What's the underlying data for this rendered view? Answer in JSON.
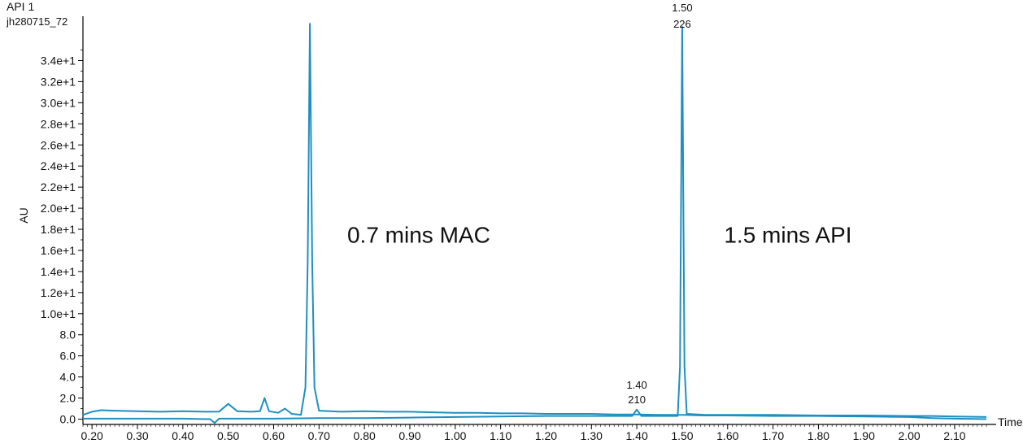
{
  "chart_data": {
    "type": "line",
    "title": "API 1",
    "subtitle": "jh280715_72",
    "ylabel": "AU",
    "xlabel": "Time",
    "xlim": [
      0.18,
      2.17
    ],
    "ylim": [
      -0.5,
      38.2
    ],
    "x_ticks": [
      0.2,
      0.3,
      0.4,
      0.5,
      0.6,
      0.7,
      0.8,
      0.9,
      1.0,
      1.1,
      1.2,
      1.3,
      1.4,
      1.5,
      1.6,
      1.7,
      1.8,
      1.9,
      2.0,
      2.1
    ],
    "x_tick_labels": [
      "0.20",
      "0.30",
      "0.40",
      "0.50",
      "0.60",
      "0.70",
      "0.80",
      "0.90",
      "1.00",
      "1.10",
      "1.20",
      "1.30",
      "1.40",
      "1.50",
      "1.60",
      "1.70",
      "1.80",
      "1.90",
      "2.00",
      "2.10"
    ],
    "y_ticks": [
      0,
      2,
      4,
      6,
      8,
      10,
      12,
      14,
      16,
      18,
      20,
      22,
      24,
      26,
      28,
      30,
      32,
      34
    ],
    "y_tick_labels": [
      "0.0",
      "2.0",
      "4.0",
      "6.0",
      "8.0",
      "1.0e+1",
      "1.2e+1",
      "1.4e+1",
      "1.6e+1",
      "1.8e+1",
      "2.0e+1",
      "2.2e+1",
      "2.4e+1",
      "2.6e+1",
      "2.8e+1",
      "3.0e+1",
      "3.2e+1",
      "3.4e+1"
    ],
    "grid": false,
    "line_color": "#1f8fc0",
    "series": [
      {
        "points": [
          [
            0.18,
            0.4
          ],
          [
            0.2,
            0.7
          ],
          [
            0.22,
            0.85
          ],
          [
            0.25,
            0.8
          ],
          [
            0.3,
            0.75
          ],
          [
            0.35,
            0.7
          ],
          [
            0.4,
            0.75
          ],
          [
            0.45,
            0.7
          ],
          [
            0.48,
            0.72
          ],
          [
            0.5,
            1.45
          ],
          [
            0.52,
            0.75
          ],
          [
            0.55,
            0.7
          ],
          [
            0.57,
            0.75
          ],
          [
            0.58,
            2.0
          ],
          [
            0.59,
            0.75
          ],
          [
            0.61,
            0.6
          ],
          [
            0.625,
            1.0
          ],
          [
            0.64,
            0.5
          ],
          [
            0.66,
            0.4
          ],
          [
            0.67,
            3.0
          ],
          [
            0.675,
            15.0
          ],
          [
            0.68,
            37.5
          ],
          [
            0.685,
            15.0
          ],
          [
            0.69,
            3.0
          ],
          [
            0.7,
            0.8
          ],
          [
            0.75,
            0.7
          ],
          [
            0.8,
            0.75
          ],
          [
            0.85,
            0.7
          ],
          [
            0.9,
            0.7
          ],
          [
            0.95,
            0.65
          ],
          [
            1.0,
            0.6
          ],
          [
            1.05,
            0.6
          ],
          [
            1.1,
            0.55
          ],
          [
            1.15,
            0.55
          ],
          [
            1.2,
            0.5
          ],
          [
            1.3,
            0.5
          ],
          [
            1.35,
            0.45
          ],
          [
            1.4,
            0.45
          ],
          [
            1.45,
            0.4
          ],
          [
            1.48,
            0.4
          ],
          [
            1.5,
            0.4
          ],
          [
            1.55,
            0.35
          ],
          [
            1.6,
            0.35
          ],
          [
            1.7,
            0.3
          ],
          [
            1.8,
            0.3
          ],
          [
            1.9,
            0.25
          ],
          [
            2.0,
            0.2
          ],
          [
            2.05,
            0.1
          ],
          [
            2.1,
            0.05
          ],
          [
            2.17,
            0.0
          ]
        ]
      },
      {
        "points": [
          [
            0.18,
            0.05
          ],
          [
            0.3,
            0.05
          ],
          [
            0.4,
            0.05
          ],
          [
            0.46,
            0.0
          ],
          [
            0.47,
            -0.35
          ],
          [
            0.48,
            0.05
          ],
          [
            0.6,
            0.05
          ],
          [
            0.7,
            0.1
          ],
          [
            0.8,
            0.1
          ],
          [
            0.9,
            0.15
          ],
          [
            1.0,
            0.2
          ],
          [
            1.1,
            0.25
          ],
          [
            1.2,
            0.3
          ],
          [
            1.3,
            0.3
          ],
          [
            1.39,
            0.3
          ],
          [
            1.4,
            0.9
          ],
          [
            1.41,
            0.3
          ],
          [
            1.45,
            0.3
          ],
          [
            1.49,
            0.3
          ],
          [
            1.495,
            5.0
          ],
          [
            1.5,
            37.2
          ],
          [
            1.505,
            5.0
          ],
          [
            1.51,
            0.5
          ],
          [
            1.55,
            0.4
          ],
          [
            1.6,
            0.4
          ],
          [
            1.7,
            0.4
          ],
          [
            1.8,
            0.35
          ],
          [
            1.9,
            0.35
          ],
          [
            2.0,
            0.3
          ],
          [
            2.05,
            0.3
          ],
          [
            2.1,
            0.25
          ],
          [
            2.17,
            0.2
          ]
        ]
      }
    ],
    "peak_labels": [
      {
        "x": 1.5,
        "y": 37.2,
        "time": "1.50",
        "mass": "226"
      },
      {
        "x": 1.4,
        "y": 0.9,
        "time": "1.40",
        "mass": "210"
      }
    ],
    "annotations": [
      {
        "text": "0.7 mins MAC",
        "x": 0.78,
        "y": 17.5
      },
      {
        "text": "1.5 mins API",
        "x": 1.61,
        "y": 17.5
      }
    ]
  }
}
